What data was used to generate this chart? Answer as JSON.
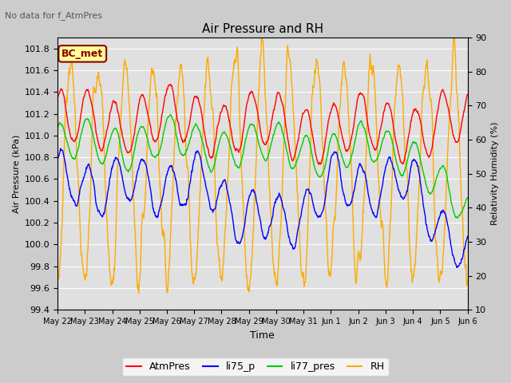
{
  "title": "Air Pressure and RH",
  "top_left_text": "No data for f_AtmPres",
  "annotation_label": "BC_met",
  "ylabel_left": "Air Pressure (kPa)",
  "ylabel_right": "Relativity Humidity (%)",
  "xlabel": "Time",
  "ylim_left": [
    99.4,
    101.9
  ],
  "ylim_right": [
    10,
    90
  ],
  "yticks_left": [
    99.4,
    99.6,
    99.8,
    100.0,
    100.2,
    100.4,
    100.6,
    100.8,
    101.0,
    101.2,
    101.4,
    101.6,
    101.8
  ],
  "yticks_right": [
    10,
    20,
    30,
    40,
    50,
    60,
    70,
    80,
    90
  ],
  "xtick_labels": [
    "May 22",
    "May 23",
    "May 24",
    "May 25",
    "May 26",
    "May 27",
    "May 28",
    "May 29",
    "May 30",
    "May 31",
    "Jun 1",
    "Jun 2",
    "Jun 3",
    "Jun 4",
    "Jun 5",
    "Jun 6"
  ],
  "background_color": "#e8e8e8",
  "fig_bg_color": "#d8d8d8",
  "grid_color": "#ffffff"
}
